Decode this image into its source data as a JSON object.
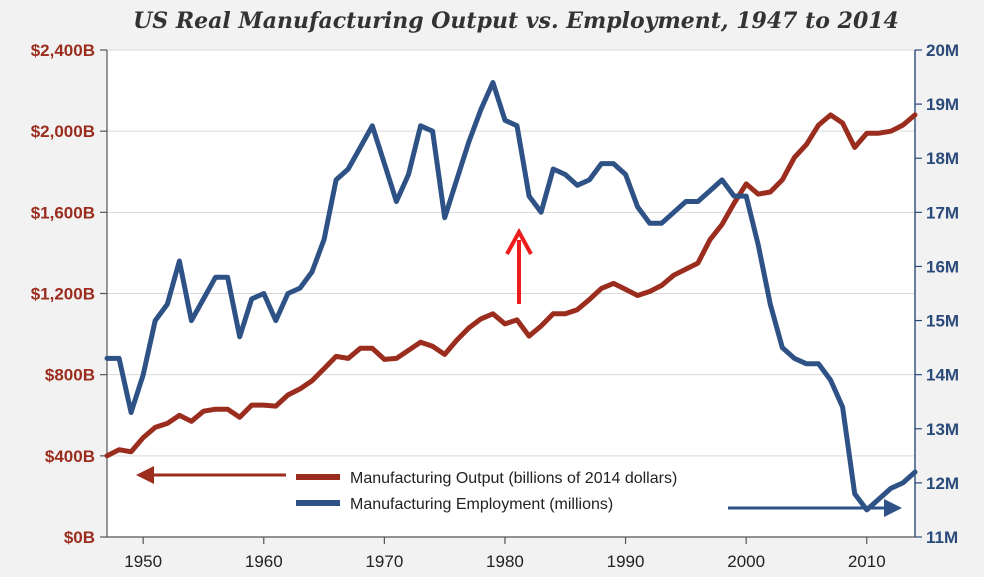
{
  "chart_data": {
    "type": "line",
    "title": "US Real Manufacturing Output vs. Employment, 1947 to 2014",
    "xlabel": "",
    "ylabel_left": "",
    "ylabel_right": "",
    "x_ticks": [
      "1950",
      "1960",
      "1970",
      "1980",
      "1990",
      "2000",
      "2010"
    ],
    "xlim": [
      1947,
      2014
    ],
    "ylim_left": [
      0,
      2400
    ],
    "ylim_right": [
      11,
      20
    ],
    "y_ticks_left": [
      "$0B",
      "$400B",
      "$800B",
      "$1,200B",
      "$1,600B",
      "$2,000B",
      "$2,400B"
    ],
    "y_ticks_right": [
      "11M",
      "12M",
      "13M",
      "14M",
      "15M",
      "16M",
      "17M",
      "18M",
      "19M",
      "20M"
    ],
    "grid": "horizontal",
    "legend_position": "bottom-center",
    "colors": {
      "output": "#9b2d1f",
      "employment": "#2f5286",
      "annotation_arrow": "#ee1c1c"
    },
    "series": [
      {
        "name": "Manufacturing Output (billions of 2014 dollars)",
        "axis": "left",
        "x": [
          1947,
          1948,
          1949,
          1950,
          1951,
          1952,
          1953,
          1954,
          1955,
          1956,
          1957,
          1958,
          1959,
          1960,
          1961,
          1962,
          1963,
          1964,
          1965,
          1966,
          1967,
          1968,
          1969,
          1970,
          1971,
          1972,
          1973,
          1974,
          1975,
          1976,
          1977,
          1978,
          1979,
          1980,
          1981,
          1982,
          1983,
          1984,
          1985,
          1986,
          1987,
          1988,
          1989,
          1990,
          1991,
          1992,
          1993,
          1994,
          1995,
          1996,
          1997,
          1998,
          1999,
          2000,
          2001,
          2002,
          2003,
          2004,
          2005,
          2006,
          2007,
          2008,
          2009,
          2010,
          2011,
          2012,
          2013,
          2014
        ],
        "values": [
          400,
          430,
          420,
          490,
          540,
          560,
          600,
          570,
          620,
          630,
          630,
          590,
          650,
          650,
          645,
          700,
          730,
          770,
          830,
          890,
          880,
          930,
          930,
          875,
          880,
          920,
          960,
          940,
          900,
          970,
          1030,
          1075,
          1100,
          1050,
          1070,
          990,
          1040,
          1100,
          1100,
          1120,
          1170,
          1225,
          1250,
          1220,
          1190,
          1210,
          1240,
          1290,
          1320,
          1350,
          1465,
          1540,
          1645,
          1740,
          1690,
          1700,
          1760,
          1870,
          1935,
          2030,
          2080,
          2040,
          1920,
          1990,
          1990,
          2000,
          2030,
          2080
        ]
      },
      {
        "name": "Manufacturing Employment (millions)",
        "axis": "right",
        "x": [
          1947,
          1948,
          1949,
          1950,
          1951,
          1952,
          1953,
          1954,
          1955,
          1956,
          1957,
          1958,
          1959,
          1960,
          1961,
          1962,
          1963,
          1964,
          1965,
          1966,
          1967,
          1968,
          1969,
          1970,
          1971,
          1972,
          1973,
          1974,
          1975,
          1976,
          1977,
          1978,
          1979,
          1980,
          1981,
          1982,
          1983,
          1984,
          1985,
          1986,
          1987,
          1988,
          1989,
          1990,
          1991,
          1992,
          1993,
          1994,
          1995,
          1996,
          1997,
          1998,
          1999,
          2000,
          2001,
          2002,
          2003,
          2004,
          2005,
          2006,
          2007,
          2008,
          2009,
          2010,
          2011,
          2012,
          2013,
          2014
        ],
        "values": [
          14.3,
          14.3,
          13.3,
          14.0,
          15.0,
          15.3,
          16.1,
          15.0,
          15.4,
          15.8,
          15.8,
          14.7,
          15.4,
          15.5,
          15.0,
          15.5,
          15.6,
          15.9,
          16.5,
          17.6,
          17.8,
          18.2,
          18.6,
          17.9,
          17.2,
          17.7,
          18.6,
          18.5,
          16.9,
          17.6,
          18.3,
          18.9,
          19.4,
          18.7,
          18.6,
          17.3,
          17.0,
          17.8,
          17.7,
          17.5,
          17.6,
          17.9,
          17.9,
          17.7,
          17.1,
          16.8,
          16.8,
          17.0,
          17.2,
          17.2,
          17.4,
          17.6,
          17.3,
          17.3,
          16.4,
          15.3,
          14.5,
          14.3,
          14.2,
          14.2,
          13.9,
          13.4,
          11.8,
          11.5,
          11.7,
          11.9,
          12.0,
          12.2
        ]
      }
    ]
  }
}
